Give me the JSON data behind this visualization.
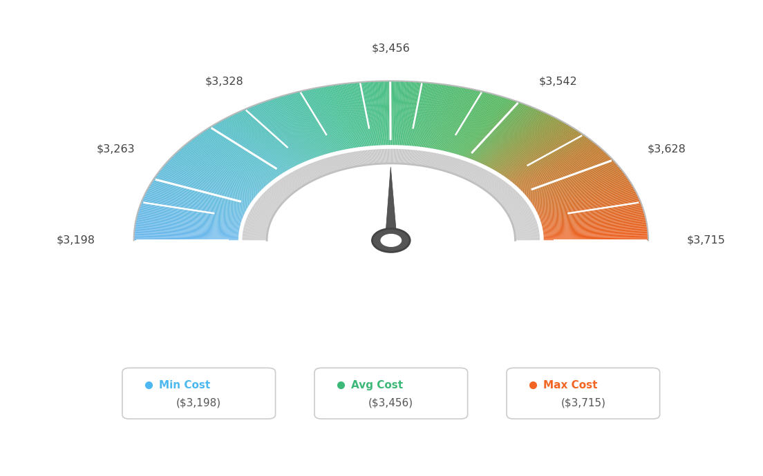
{
  "min_val": 3198,
  "avg_val": 3456,
  "max_val": 3715,
  "tick_labels": [
    "$3,198",
    "$3,263",
    "$3,328",
    "$3,456",
    "$3,542",
    "$3,628",
    "$3,715"
  ],
  "tick_values": [
    3198,
    3263,
    3328,
    3456,
    3542,
    3628,
    3715
  ],
  "color_stops": [
    [
      0.0,
      [
        0.42,
        0.72,
        0.93
      ]
    ],
    [
      0.25,
      [
        0.35,
        0.75,
        0.8
      ]
    ],
    [
      0.42,
      [
        0.3,
        0.76,
        0.6
      ]
    ],
    [
      0.5,
      [
        0.3,
        0.75,
        0.52
      ]
    ],
    [
      0.65,
      [
        0.35,
        0.72,
        0.38
      ]
    ],
    [
      0.72,
      [
        0.55,
        0.6,
        0.25
      ]
    ],
    [
      0.8,
      [
        0.75,
        0.48,
        0.18
      ]
    ],
    [
      1.0,
      [
        0.93,
        0.38,
        0.13
      ]
    ]
  ],
  "legend": [
    {
      "label": "Min Cost",
      "value": "($3,198)",
      "color": "#4db8f0"
    },
    {
      "label": "Avg Cost",
      "value": "($3,456)",
      "color": "#3cb878"
    },
    {
      "label": "Max Cost",
      "value": "($3,715)",
      "color": "#f26522"
    }
  ],
  "background_color": "#ffffff",
  "outer_arc_color": "#cccccc",
  "inner_band_color": "#d0d0d0"
}
